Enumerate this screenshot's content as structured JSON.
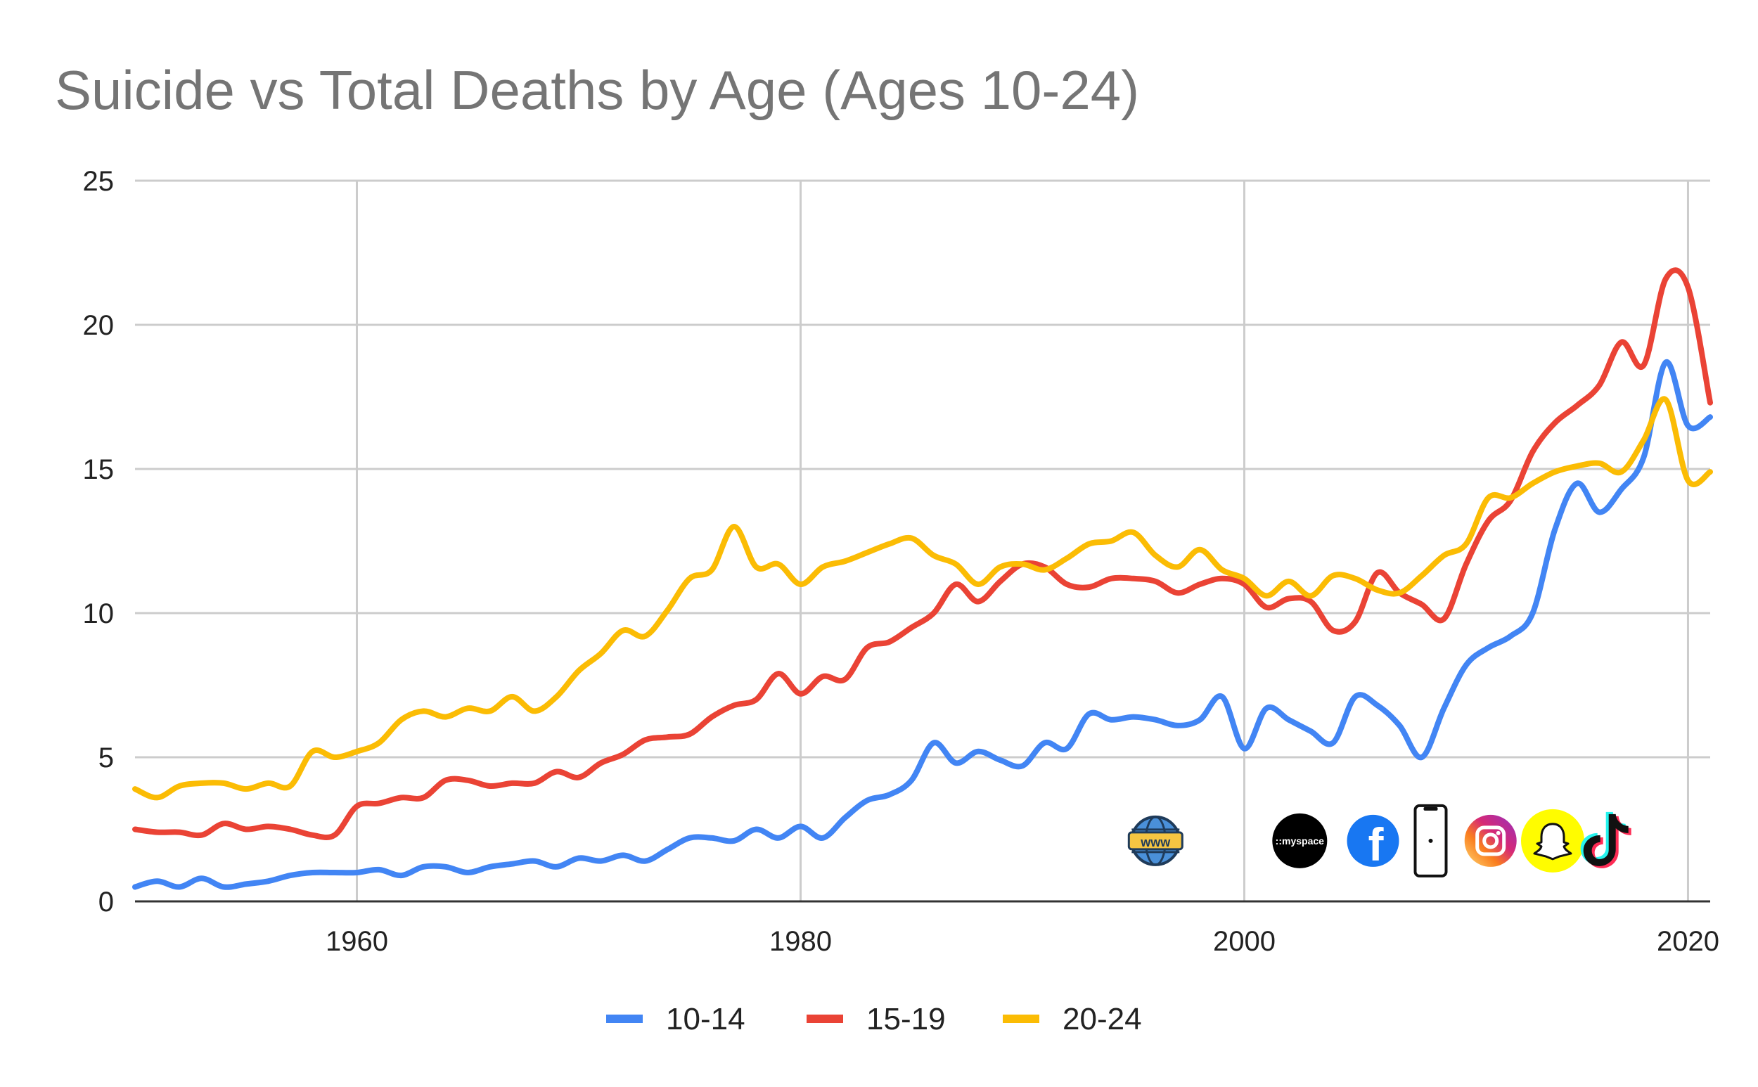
{
  "chart_data": {
    "type": "line",
    "title": "Suicide vs Total Deaths by Age (Ages 10-24)",
    "xlabel": "",
    "ylabel": "",
    "xlim": [
      1950,
      2021
    ],
    "ylim": [
      0,
      25
    ],
    "x_ticks": [
      "1960",
      "1980",
      "2000",
      "2020"
    ],
    "y_ticks": [
      "0",
      "5",
      "10",
      "15",
      "20",
      "25"
    ],
    "grid": true,
    "legend_position": "bottom",
    "x": [
      1950,
      1951,
      1952,
      1953,
      1954,
      1955,
      1956,
      1957,
      1958,
      1959,
      1960,
      1961,
      1962,
      1963,
      1964,
      1965,
      1966,
      1967,
      1968,
      1969,
      1970,
      1971,
      1972,
      1973,
      1974,
      1975,
      1976,
      1977,
      1978,
      1979,
      1980,
      1981,
      1982,
      1983,
      1984,
      1985,
      1986,
      1987,
      1988,
      1989,
      1990,
      1991,
      1992,
      1993,
      1994,
      1995,
      1996,
      1997,
      1998,
      1999,
      2000,
      2001,
      2002,
      2003,
      2004,
      2005,
      2006,
      2007,
      2008,
      2009,
      2010,
      2011,
      2012,
      2013,
      2014,
      2015,
      2016,
      2017,
      2018,
      2019,
      2020,
      2021
    ],
    "series": [
      {
        "name": "10-14",
        "color": "#4285f4",
        "values": [
          0.5,
          0.7,
          0.5,
          0.8,
          0.5,
          0.6,
          0.7,
          0.9,
          1.0,
          1.0,
          1.0,
          1.1,
          0.9,
          1.2,
          1.2,
          1.0,
          1.2,
          1.3,
          1.4,
          1.2,
          1.5,
          1.4,
          1.6,
          1.4,
          1.8,
          2.2,
          2.2,
          2.1,
          2.5,
          2.2,
          2.6,
          2.2,
          2.9,
          3.5,
          3.7,
          4.2,
          5.5,
          4.8,
          5.2,
          4.9,
          4.7,
          5.5,
          5.3,
          6.5,
          6.3,
          6.4,
          6.3,
          6.1,
          6.3,
          7.1,
          5.3,
          6.7,
          6.3,
          5.9,
          5.5,
          7.1,
          6.8,
          6.1,
          5.0,
          6.7,
          8.2,
          8.8,
          9.2,
          10.0,
          12.9,
          14.5,
          13.5,
          14.3,
          15.4,
          18.7,
          16.5,
          16.8
        ]
      },
      {
        "name": "15-19",
        "color": "#ea4335",
        "values": [
          2.5,
          2.4,
          2.4,
          2.3,
          2.7,
          2.5,
          2.6,
          2.5,
          2.3,
          2.3,
          3.3,
          3.4,
          3.6,
          3.6,
          4.2,
          4.2,
          4.0,
          4.1,
          4.1,
          4.5,
          4.3,
          4.8,
          5.1,
          5.6,
          5.7,
          5.8,
          6.4,
          6.8,
          7.0,
          7.9,
          7.2,
          7.8,
          7.7,
          8.8,
          9.0,
          9.5,
          10.0,
          11.0,
          10.4,
          11.1,
          11.7,
          11.6,
          11.0,
          10.9,
          11.2,
          11.2,
          11.1,
          10.7,
          11.0,
          11.2,
          11.0,
          10.2,
          10.5,
          10.4,
          9.4,
          9.7,
          11.4,
          10.7,
          10.3,
          9.8,
          11.7,
          13.2,
          13.9,
          15.6,
          16.6,
          17.2,
          17.9,
          19.4,
          18.6,
          21.6,
          21.3,
          17.3
        ]
      },
      {
        "name": "20-24",
        "color": "#fbbc04",
        "values": [
          3.9,
          3.6,
          4.0,
          4.1,
          4.1,
          3.9,
          4.1,
          4.0,
          5.2,
          5.0,
          5.2,
          5.5,
          6.3,
          6.6,
          6.4,
          6.7,
          6.6,
          7.1,
          6.6,
          7.1,
          8.0,
          8.6,
          9.4,
          9.2,
          10.1,
          11.2,
          11.5,
          13.0,
          11.6,
          11.7,
          11.0,
          11.6,
          11.8,
          12.1,
          12.4,
          12.6,
          12.0,
          11.7,
          11.0,
          11.6,
          11.7,
          11.5,
          11.9,
          12.4,
          12.5,
          12.8,
          12.0,
          11.6,
          12.2,
          11.5,
          11.2,
          10.6,
          11.1,
          10.6,
          11.3,
          11.2,
          10.8,
          10.7,
          11.3,
          12.0,
          12.4,
          14.0,
          14.0,
          14.5,
          14.9,
          15.1,
          15.2,
          14.9,
          16.0,
          17.4,
          14.6,
          14.9
        ]
      }
    ],
    "annotations": {
      "icons": [
        {
          "name": "www-globe-icon",
          "x": 1996,
          "label": "www"
        },
        {
          "name": "myspace-icon",
          "x": 2002.5,
          "label": "::myspace"
        },
        {
          "name": "facebook-icon",
          "x": 2005.8,
          "label": "f"
        },
        {
          "name": "iphone-icon",
          "x": 2008.4,
          "label": ""
        },
        {
          "name": "instagram-icon",
          "x": 2011.1,
          "label": ""
        },
        {
          "name": "snapchat-icon",
          "x": 2013.9,
          "label": ""
        },
        {
          "name": "tiktok-icon",
          "x": 2016.3,
          "label": ""
        }
      ],
      "icon_y": 2.1
    }
  }
}
